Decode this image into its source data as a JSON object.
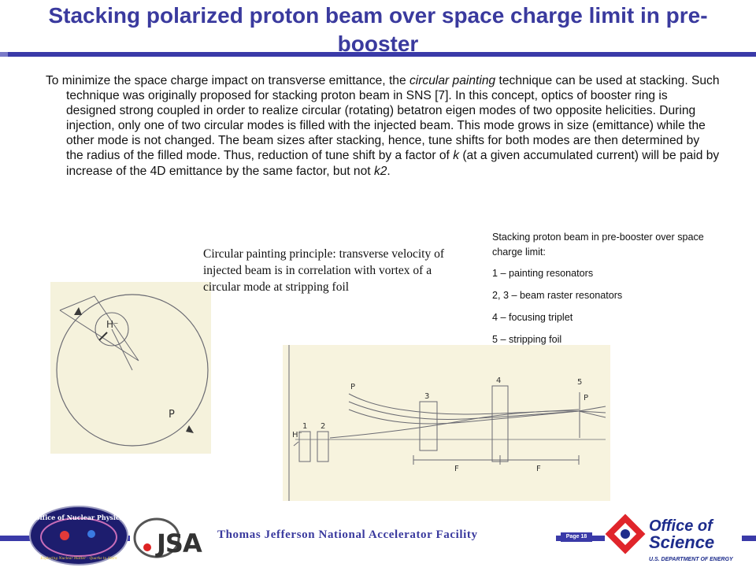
{
  "slide": {
    "title": "Stacking polarized proton beam over space charge limit in pre-booster",
    "body": {
      "p1": "To minimize the space charge impact on transverse  emittance, the ",
      "em1": "circular painting",
      "p2": " technique can be used at stacking. Such technique was originally proposed for stacking proton beam in SNS [7]. In this concept, optics of booster ring is designed strong coupled in order to realize circular (rotating) betatron eigen modes of two opposite helicities. During injection, only one of two circular modes is filled with the injected beam. This mode grows in size (emittance) while the other mode is not changed. The beam sizes after stacking, hence, tune shifts for both modes are then determined by the radius of the filled mode. Thus, reduction of tune shift by a factor of ",
      "em2": "k",
      "p3": " (at a given accumulated current) will be paid by increase of the 4D emittance by the same factor, but not ",
      "em3": "k2",
      "p4": "."
    },
    "caption_left": "Circular painting principle: transverse velocity of injected beam is in correlation with vortex of a circular  mode at stripping foil",
    "legend": {
      "heading": "Stacking proton beam in pre-booster over space charge limit:",
      "items": [
        "1 – painting resonators",
        "2, 3 –  beam raster resonators",
        "4 – focusing triplet",
        "5 – stripping foil"
      ]
    },
    "figure_left": {
      "labels": {
        "ion": "H⁻",
        "proton": "P"
      }
    },
    "figure_right": {
      "labels": {
        "ion": "H⁻",
        "p_in": "P",
        "p_out": "P",
        "n1": "1",
        "n2": "2",
        "n3": "3",
        "n4": "4",
        "n5": "5",
        "f1": "F",
        "f2": "F"
      }
    }
  },
  "footer": {
    "lab_name": "Thomas Jefferson National Accelerator Facility",
    "page": "Page 18",
    "logo_onp": {
      "title": "Office of Nuclear Physics",
      "tagline": "Exploring Nuclear Matter - Quarks to Stars"
    },
    "logo_jsa": {
      "text": "JSA"
    },
    "logo_os": {
      "line1": "Office of",
      "line2": "Science",
      "line3": "U.S. DEPARTMENT OF ENERGY"
    }
  },
  "colors": {
    "title": "#3a3a9e",
    "rule": "#3a3aa8",
    "figure_bg": "#f5f2dc",
    "os_red": "#e0252b"
  }
}
